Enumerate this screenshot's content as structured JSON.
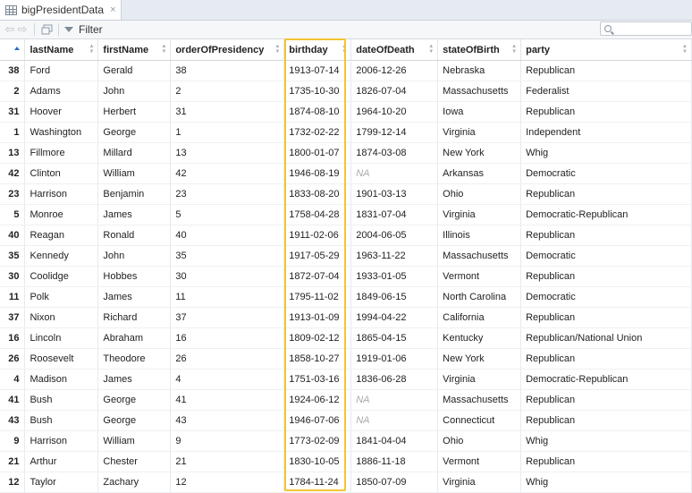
{
  "tab": {
    "title": "bigPresidentData",
    "close": "×"
  },
  "toolbar": {
    "filter_label": "Filter",
    "search_placeholder": ""
  },
  "columns": [
    "",
    "lastName",
    "firstName",
    "orderOfPresidency",
    "birthday",
    "dateOfDeath",
    "stateOfBirth",
    "party"
  ],
  "rows": [
    [
      "38",
      "Ford",
      "Gerald",
      "38",
      "1913-07-14",
      "2006-12-26",
      "Nebraska",
      "Republican"
    ],
    [
      "2",
      "Adams",
      "John",
      "2",
      "1735-10-30",
      "1826-07-04",
      "Massachusetts",
      "Federalist"
    ],
    [
      "31",
      "Hoover",
      "Herbert",
      "31",
      "1874-08-10",
      "1964-10-20",
      "Iowa",
      "Republican"
    ],
    [
      "1",
      "Washington",
      "George",
      "1",
      "1732-02-22",
      "1799-12-14",
      "Virginia",
      "Independent"
    ],
    [
      "13",
      "Fillmore",
      "Millard",
      "13",
      "1800-01-07",
      "1874-03-08",
      "New York",
      "Whig"
    ],
    [
      "42",
      "Clinton",
      "William",
      "42",
      "1946-08-19",
      "NA",
      "Arkansas",
      "Democratic"
    ],
    [
      "23",
      "Harrison",
      "Benjamin",
      "23",
      "1833-08-20",
      "1901-03-13",
      "Ohio",
      "Republican"
    ],
    [
      "5",
      "Monroe",
      "James",
      "5",
      "1758-04-28",
      "1831-07-04",
      "Virginia",
      "Democratic-Republican"
    ],
    [
      "40",
      "Reagan",
      "Ronald",
      "40",
      "1911-02-06",
      "2004-06-05",
      "Illinois",
      "Republican"
    ],
    [
      "35",
      "Kennedy",
      "John",
      "35",
      "1917-05-29",
      "1963-11-22",
      "Massachusetts",
      "Democratic"
    ],
    [
      "30",
      "Coolidge",
      "Hobbes",
      "30",
      "1872-07-04",
      "1933-01-05",
      "Vermont",
      "Republican"
    ],
    [
      "11",
      "Polk",
      "James",
      "11",
      "1795-11-02",
      "1849-06-15",
      "North Carolina",
      "Democratic"
    ],
    [
      "37",
      "Nixon",
      "Richard",
      "37",
      "1913-01-09",
      "1994-04-22",
      "California",
      "Republican"
    ],
    [
      "16",
      "Lincoln",
      "Abraham",
      "16",
      "1809-02-12",
      "1865-04-15",
      "Kentucky",
      "Republican/National Union"
    ],
    [
      "26",
      "Roosevelt",
      "Theodore",
      "26",
      "1858-10-27",
      "1919-01-06",
      "New York",
      "Republican"
    ],
    [
      "4",
      "Madison",
      "James",
      "4",
      "1751-03-16",
      "1836-06-28",
      "Virginia",
      "Democratic-Republican"
    ],
    [
      "41",
      "Bush",
      "George",
      "41",
      "1924-06-12",
      "NA",
      "Massachusetts",
      "Republican"
    ],
    [
      "43",
      "Bush",
      "George",
      "43",
      "1946-07-06",
      "NA",
      "Connecticut",
      "Republican"
    ],
    [
      "9",
      "Harrison",
      "William",
      "9",
      "1773-02-09",
      "1841-04-04",
      "Ohio",
      "Whig"
    ],
    [
      "21",
      "Arthur",
      "Chester",
      "21",
      "1830-10-05",
      "1886-11-18",
      "Vermont",
      "Republican"
    ],
    [
      "12",
      "Taylor",
      "Zachary",
      "12",
      "1784-11-24",
      "1850-07-09",
      "Virginia",
      "Whig"
    ]
  ],
  "highlight_color": "#f4c430",
  "sort_indicator_color": "#2b6cc4",
  "icons": [
    "grid-icon",
    "back-arrow-icon",
    "forward-arrow-icon",
    "popout-icon",
    "filter-icon",
    "search-icon",
    "sort-icon"
  ]
}
